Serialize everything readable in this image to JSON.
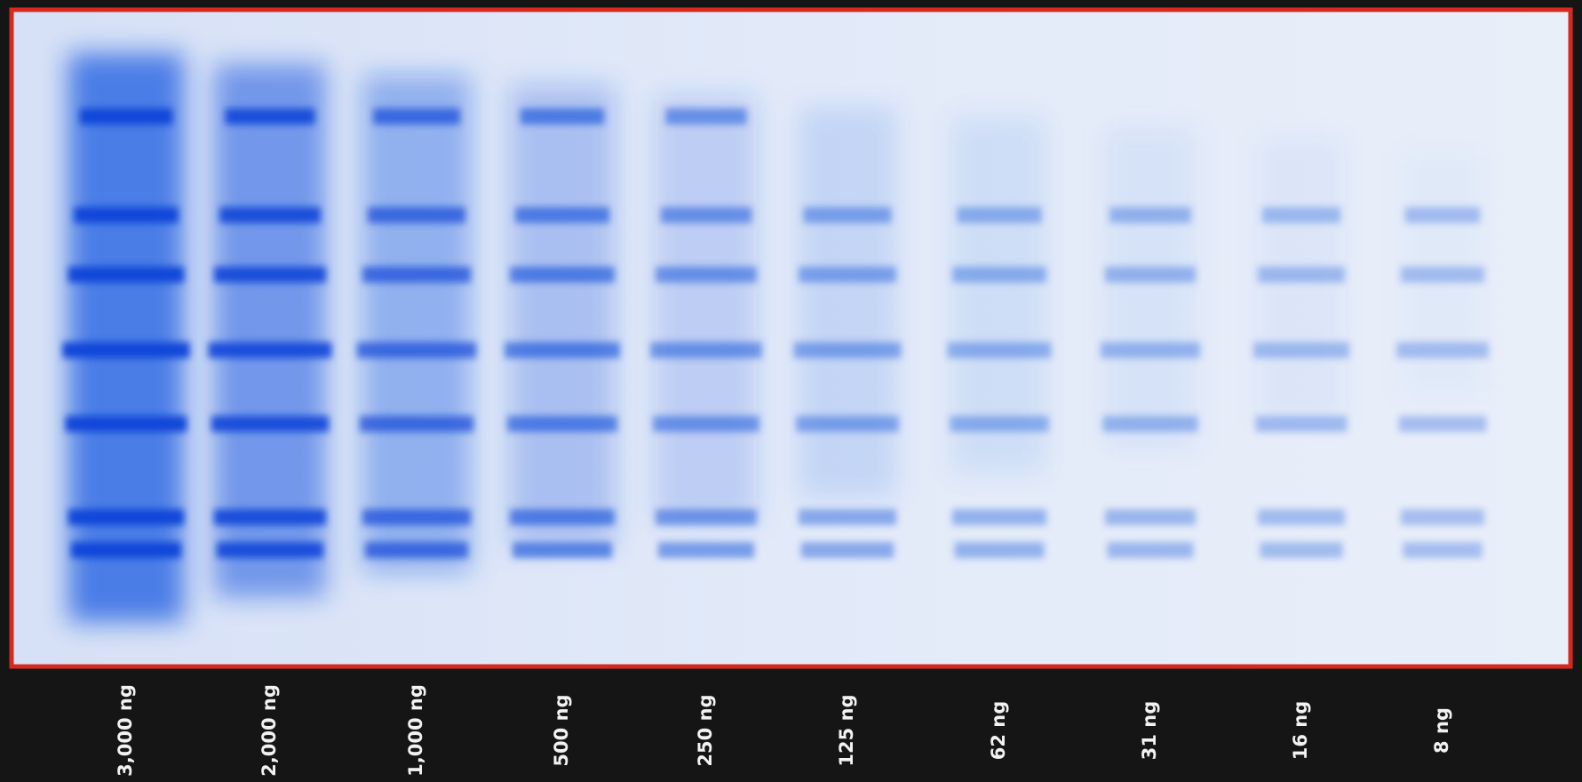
{
  "lanes": [
    {
      "label": "3,000 ng"
    },
    {
      "label": "2,000 ng"
    },
    {
      "label": "1,000 ng"
    },
    {
      "label": "500 ng"
    },
    {
      "label": "250 ng"
    },
    {
      "label": "125 ng"
    },
    {
      "label": "62 ng"
    },
    {
      "label": "31 ng"
    },
    {
      "label": "16 ng"
    },
    {
      "label": "8 ng"
    }
  ]
}
